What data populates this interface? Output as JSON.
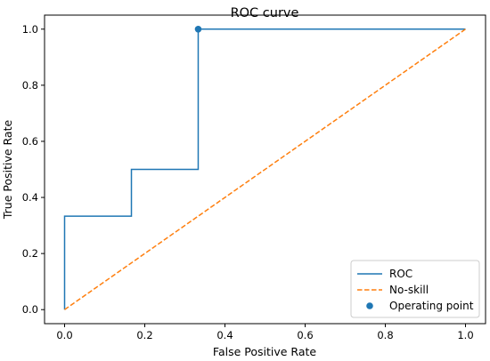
{
  "chart_data": {
    "type": "line",
    "title": "ROC curve",
    "xlabel": "False Positive Rate",
    "ylabel": "True Positive Rate",
    "xlim": [
      -0.05,
      1.05
    ],
    "ylim": [
      -0.05,
      1.05
    ],
    "xticks": [
      "0.0",
      "0.2",
      "0.4",
      "0.6",
      "0.8",
      "1.0"
    ],
    "yticks": [
      "0.0",
      "0.2",
      "0.4",
      "0.6",
      "0.8",
      "1.0"
    ],
    "grid": false,
    "legend": "lower-right",
    "series": [
      {
        "name": "ROC",
        "kind": "line",
        "color": "#1f77b4",
        "x": [
          0.0,
          0.0,
          0.1667,
          0.1667,
          0.3333,
          0.3333,
          1.0
        ],
        "y": [
          0.0,
          0.3333,
          0.3333,
          0.5,
          0.5,
          1.0,
          1.0
        ]
      },
      {
        "name": "No-skill",
        "kind": "dashed-line",
        "color": "#ff7f0e",
        "x": [
          0.0,
          1.0
        ],
        "y": [
          0.0,
          1.0
        ]
      },
      {
        "name": "Operating point",
        "kind": "scatter",
        "color": "#1f77b4",
        "x": [
          0.3333
        ],
        "y": [
          1.0
        ]
      }
    ]
  }
}
